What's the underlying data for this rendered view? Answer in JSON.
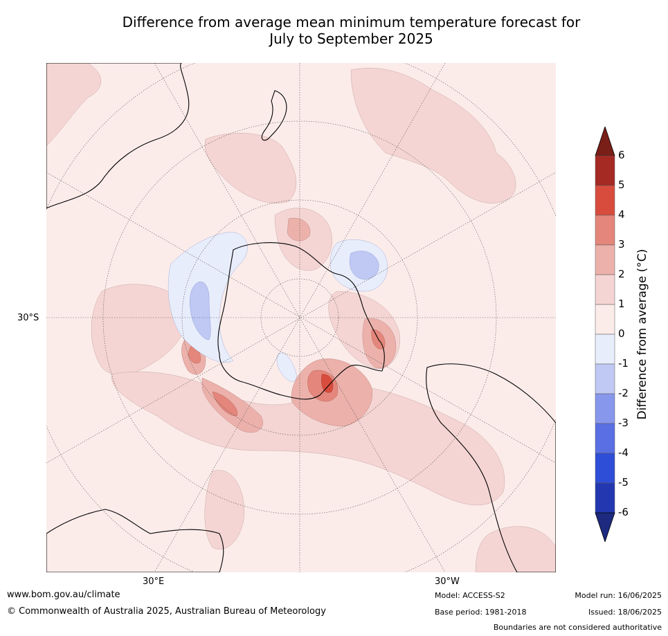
{
  "title_line1": "Difference from average mean minimum temperature forecast for",
  "title_line2": "July to September 2025",
  "map": {
    "projection": "polar-stereographic-south",
    "lat_label": "30°S",
    "lon_labels": [
      "30°E",
      "30°W"
    ],
    "graticule": "dotted",
    "land_colors": {
      "ocean_base": "#fbecea",
      "anomaly_0_1": "#fbecea",
      "anomaly_1_2": "#f4d5d3",
      "anomaly_2_3": "#ecb1ab",
      "anomaly_3_4": "#e4867b",
      "anomaly_4_5": "#d84c3e",
      "anomaly_neg1_0": "#e8edfb",
      "anomaly_neg2_neg1": "#c0c9f4"
    }
  },
  "colorbar": {
    "label": "Difference from average (°C)",
    "ticks": [
      "6",
      "5",
      "4",
      "3",
      "2",
      "1",
      "0",
      "-1",
      "-2",
      "-3",
      "-4",
      "-5",
      "-6"
    ],
    "bins": [
      {
        "range": ">6",
        "color": "#7a1e18"
      },
      {
        "range": "5 to 6",
        "color": "#a52a24"
      },
      {
        "range": "4 to 5",
        "color": "#d84c3e"
      },
      {
        "range": "3 to 4",
        "color": "#e4867b"
      },
      {
        "range": "2 to 3",
        "color": "#ecb1ab"
      },
      {
        "range": "1 to 2",
        "color": "#f4d5d3"
      },
      {
        "range": "0 to 1",
        "color": "#fbecea"
      },
      {
        "range": "-1 to 0",
        "color": "#e8edfb"
      },
      {
        "range": "-2 to -1",
        "color": "#c0c9f4"
      },
      {
        "range": "-3 to -2",
        "color": "#8797ec"
      },
      {
        "range": "-4 to -3",
        "color": "#5a6fe3"
      },
      {
        "range": "-5 to -4",
        "color": "#2f4ed8"
      },
      {
        "range": "-6 to -5",
        "color": "#2338b0"
      },
      {
        "range": "<-6",
        "color": "#1d2a80"
      }
    ]
  },
  "footer": {
    "url": "www.bom.gov.au/climate",
    "copyright": "© Commonwealth of Australia 2025, Australian Bureau of Meteorology",
    "model": "Model: ACCESS-S2",
    "base_period": "Base period: 1981-2018",
    "model_run": "Model run: 16/06/2025",
    "issued": "Issued: 18/06/2025",
    "disclaimer": "Boundaries are not considered authoritative"
  }
}
